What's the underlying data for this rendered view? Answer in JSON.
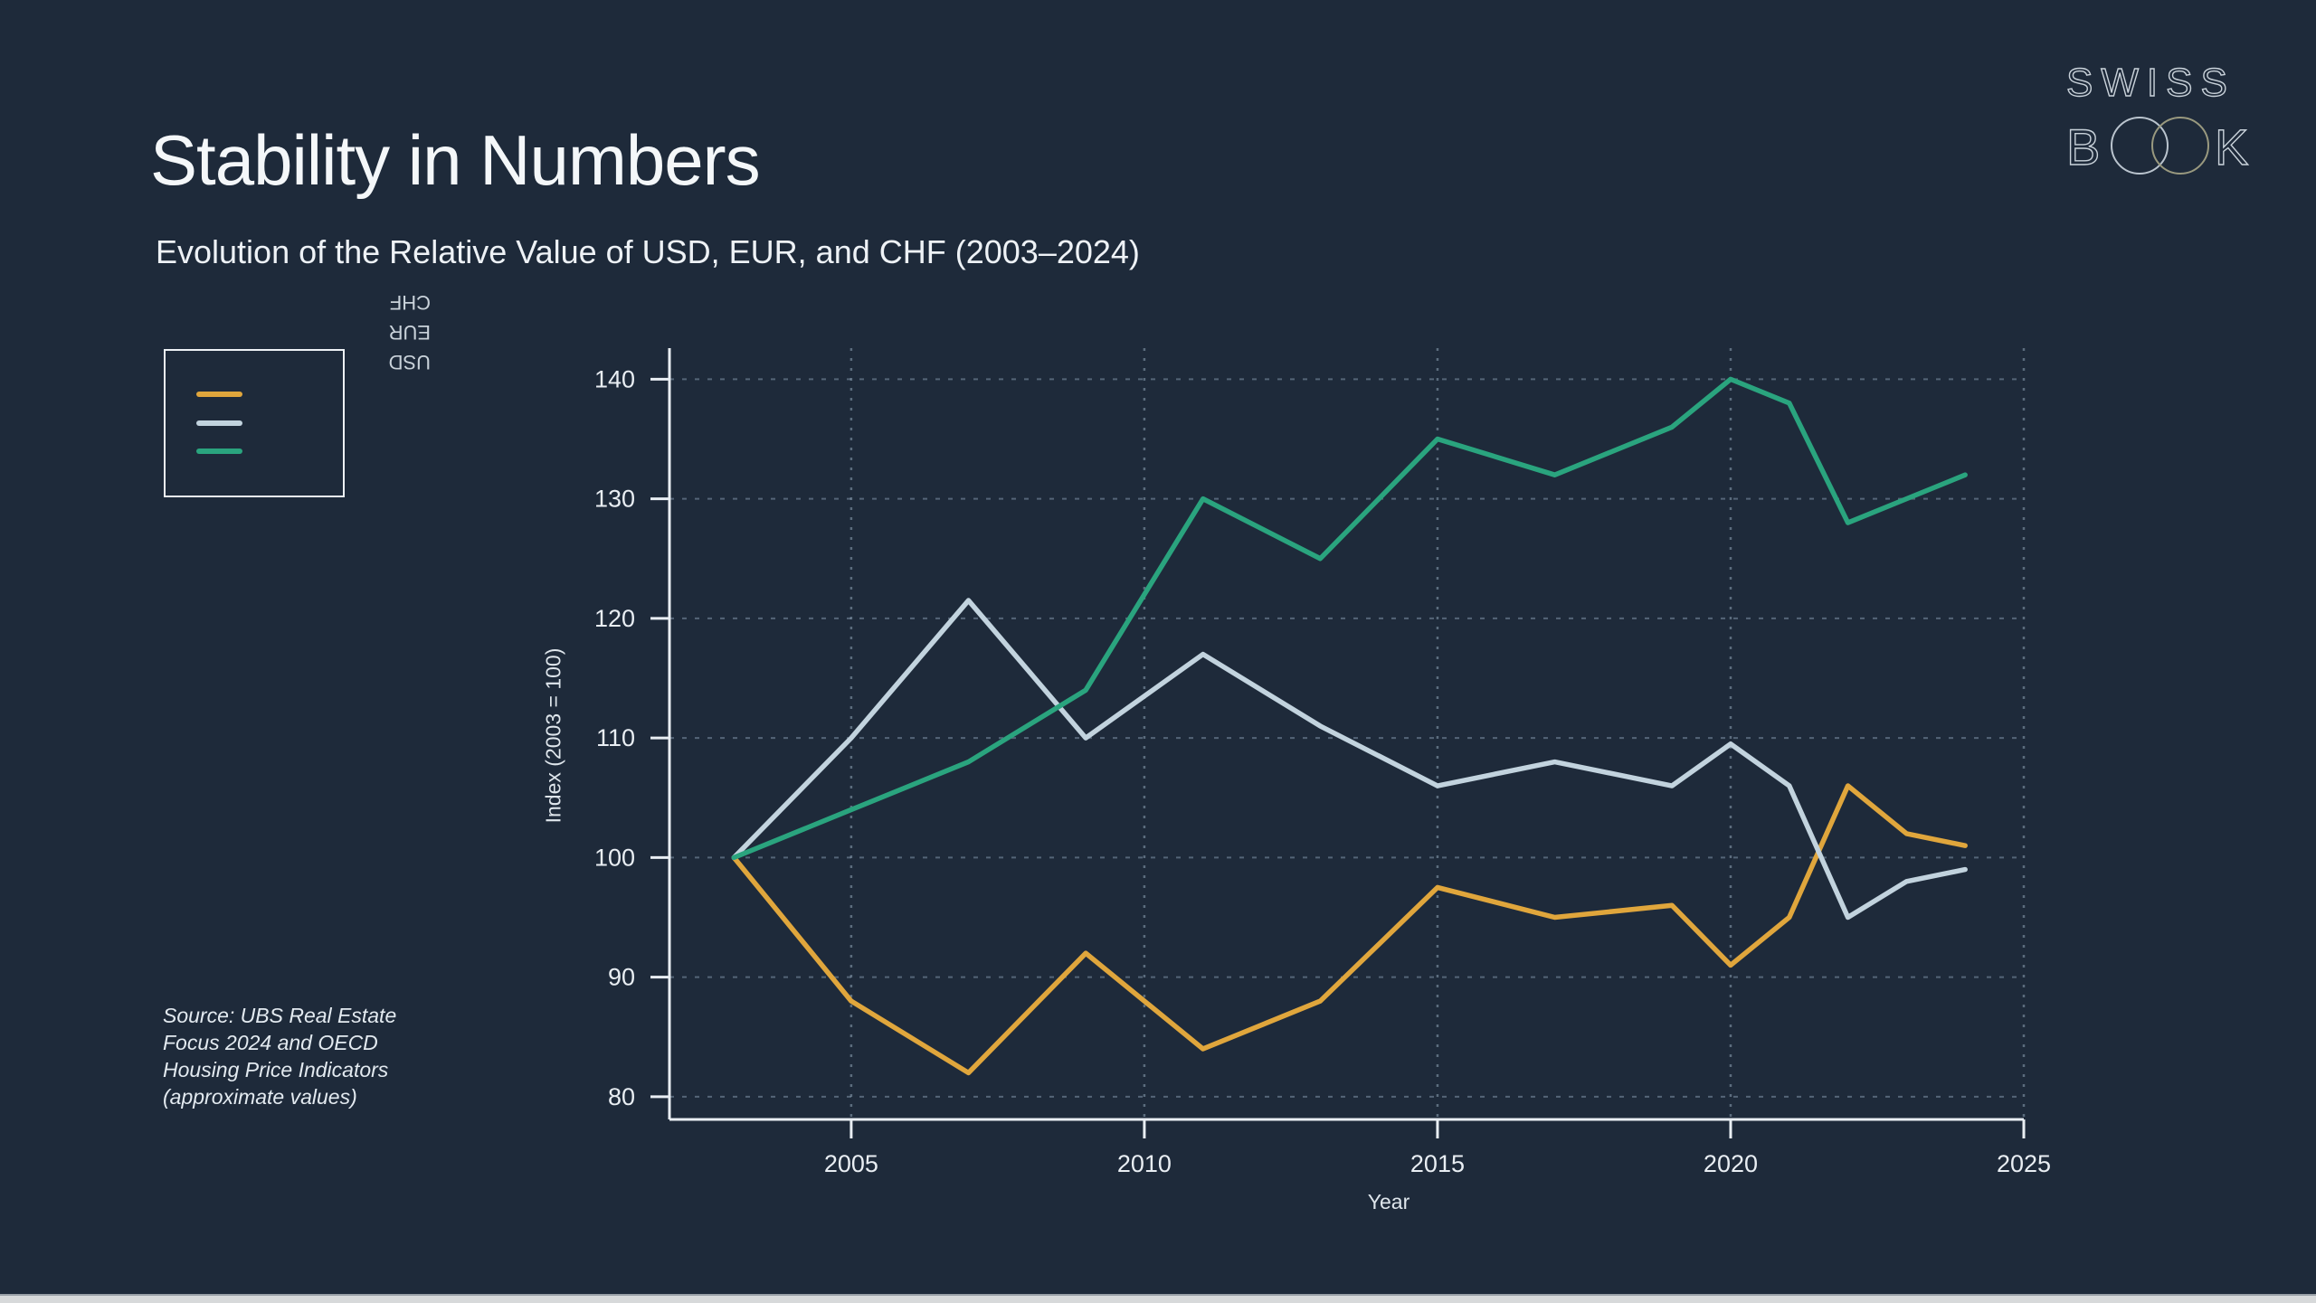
{
  "page": {
    "background": "#1e2a3a",
    "bottom_bar_color": "#d7d9da"
  },
  "header": {
    "title": "Stability in Numbers",
    "subtitle": "Evolution of the Relative Value of USD, EUR, and CHF (2003–2024)"
  },
  "logo": {
    "top": "SWISS",
    "book_b": "B",
    "book_k": "K"
  },
  "legend": {
    "rotated_labels": [
      "CHF",
      "EUR",
      "USD"
    ]
  },
  "source_note": "Source: UBS Real Estate\nFocus 2024 and OECD\nHousing Price Indicators\n(approximate values)",
  "chart_data": {
    "type": "line",
    "title": "Stability in Numbers",
    "subtitle": "Evolution of the Relative Value of USD, EUR, and CHF (2003–2024)",
    "xlabel": "Year",
    "ylabel": "Index (2003 = 100)",
    "x": [
      2003,
      2005,
      2007,
      2009,
      2011,
      2013,
      2015,
      2017,
      2019,
      2020,
      2021,
      2022,
      2023,
      2024
    ],
    "series": [
      {
        "name": "USD",
        "color": "#e0a63c",
        "values": [
          100,
          88,
          82,
          92,
          84,
          88,
          97.5,
          95,
          96,
          91,
          95,
          106,
          102,
          101
        ]
      },
      {
        "name": "EUR",
        "color": "#c2d3de",
        "values": [
          100,
          110,
          121.5,
          110,
          117,
          111,
          106,
          108,
          106,
          109.5,
          106,
          95,
          98,
          99
        ]
      },
      {
        "name": "CHF",
        "color": "#2aa47e",
        "values": [
          100,
          104,
          108,
          114,
          130,
          125,
          135,
          132,
          136,
          140,
          138,
          128,
          130,
          132
        ]
      }
    ],
    "x_ticks": [
      2005,
      2010,
      2015,
      2020,
      2025
    ],
    "y_ticks": [
      80,
      90,
      100,
      110,
      120,
      130,
      140
    ],
    "x_range": [
      2001.9,
      2025.0
    ],
    "y_range": [
      78.1,
      142.6
    ],
    "grid": true,
    "legend_position": "outside-upper-left",
    "legend_order_top_to_bottom": [
      "USD",
      "EUR",
      "CHF"
    ]
  }
}
